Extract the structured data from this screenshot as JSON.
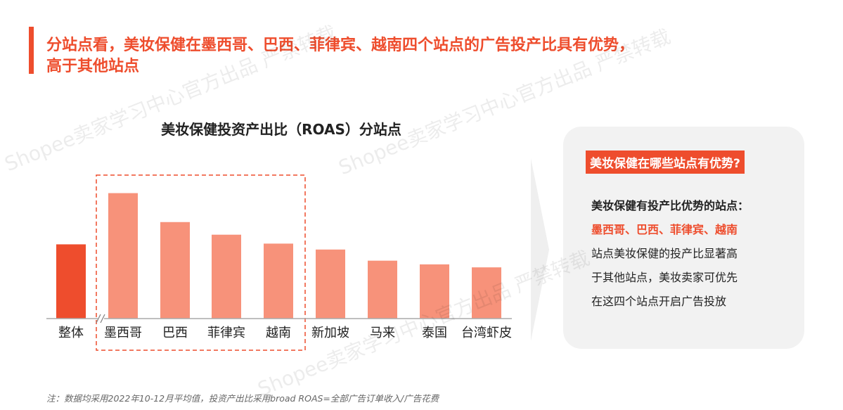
{
  "headline": {
    "line1": "分站点看，美妆保健在墨西哥、巴西、菲律宾、越南四个站点的广告投产比具有优势，",
    "line2": "高于其他站点"
  },
  "chart_data": {
    "type": "bar",
    "title": "美妆保健投资产出比（ROAS）分站点",
    "categories": [
      "整体",
      "墨西哥",
      "巴西",
      "菲律宾",
      "越南",
      "新加坡",
      "马来",
      "泰国",
      "台湾虾皮"
    ],
    "values": [
      100,
      169,
      130,
      113,
      101,
      93,
      78,
      73,
      69
    ],
    "highlighted_categories": [
      "墨西哥",
      "巴西",
      "菲律宾",
      "越南"
    ],
    "xlabel": "",
    "ylabel": "",
    "ylim": [
      0,
      180
    ],
    "grid": false,
    "legend": "none",
    "colors": {
      "overall": "#ee4d2d",
      "sites": "#f7927a",
      "highlight_box": "#ee4d2d"
    },
    "axis_break_after": "整体"
  },
  "panel": {
    "title": "美妆保健在哪些站点有优势?",
    "lead": "美妆保健有投产比优势的站点：",
    "highlight": "墨西哥、巴西、菲律宾、越南",
    "body_lines": [
      "站点美妆保健的投产比显著高",
      "于其他站点，美妆卖家可优先",
      "在这四个站点开启广告投放"
    ]
  },
  "note": "注：数据均采用2022年10-12月平均值，投资产出比采用broad ROAS=全部广告订单收入/广告花费",
  "watermarks": [
    "Shopee卖家学习中心官方出品 严禁转载"
  ]
}
